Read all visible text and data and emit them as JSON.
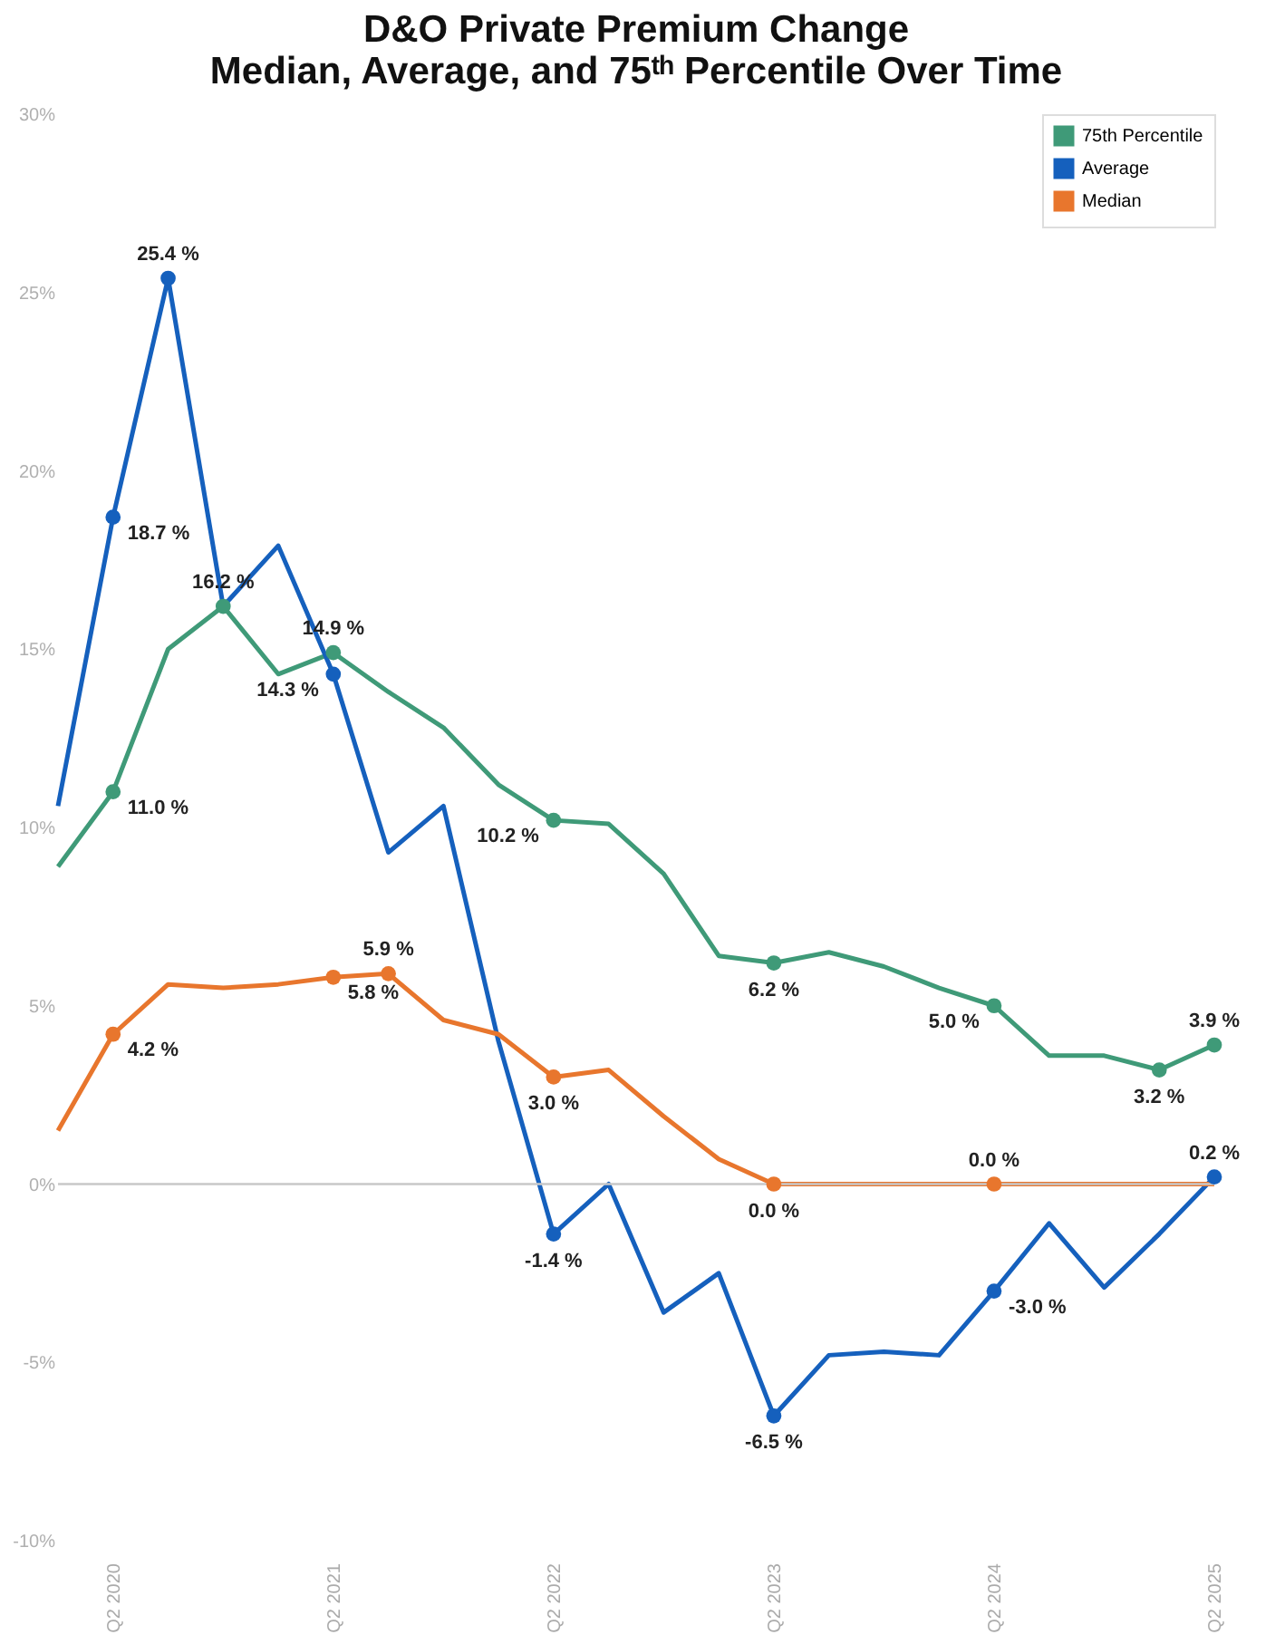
{
  "chart_data": {
    "type": "line",
    "title": "D&O Private Premium Change",
    "subtitle": "Median, Average, and 75ᵗʰ Percentile Over Time",
    "categories": [
      null,
      "Q2 2020",
      null,
      null,
      null,
      "Q2 2021",
      null,
      null,
      null,
      "Q2 2022",
      null,
      null,
      null,
      "Q2 2023",
      null,
      null,
      null,
      "Q2 2024",
      null,
      null,
      null,
      "Q2 2025"
    ],
    "series": [
      {
        "name": "75th Percentile",
        "color": "#3f9a78",
        "values": [
          8.9,
          11.0,
          15.0,
          16.2,
          14.3,
          14.9,
          13.8,
          12.8,
          11.2,
          10.2,
          10.1,
          8.7,
          6.4,
          6.2,
          6.5,
          6.1,
          5.5,
          5.0,
          3.6,
          3.6,
          3.2,
          3.9
        ],
        "value_labels": [
          null,
          "11.0 %",
          null,
          "16.2 %",
          null,
          "14.9 %",
          null,
          null,
          null,
          "10.2 %",
          null,
          null,
          null,
          "6.2 %",
          null,
          null,
          null,
          "5.0 %",
          null,
          null,
          "3.2 %",
          "3.9 %"
        ]
      },
      {
        "name": "Average",
        "color": "#1560bd",
        "values": [
          10.6,
          18.7,
          25.4,
          16.2,
          17.9,
          14.3,
          9.3,
          10.6,
          4.0,
          -1.4,
          0.0,
          -3.6,
          -2.5,
          -6.5,
          -4.8,
          -4.7,
          -4.8,
          -3.0,
          -1.1,
          -2.9,
          -1.4,
          0.2
        ],
        "value_labels": [
          null,
          "18.7 %",
          "25.4 %",
          null,
          null,
          "14.3 %",
          null,
          null,
          null,
          "-1.4 %",
          null,
          null,
          null,
          "-6.5 %",
          null,
          null,
          null,
          "-3.0 %",
          null,
          null,
          null,
          "0.2 %"
        ]
      },
      {
        "name": "Median",
        "color": "#e8762d",
        "values": [
          1.5,
          4.2,
          5.6,
          5.5,
          5.6,
          5.8,
          5.9,
          4.6,
          4.2,
          3.0,
          3.2,
          1.9,
          0.7,
          0.0,
          0.0,
          0.0,
          0.0,
          0.0,
          0.0,
          0.0,
          0.0,
          0.0
        ],
        "value_labels": [
          null,
          "4.2 %",
          null,
          null,
          null,
          "5.8 %",
          "5.9 %",
          null,
          null,
          "3.0 %",
          null,
          null,
          null,
          "0.0 %",
          null,
          null,
          null,
          "0.0 %",
          null,
          null,
          null,
          null
        ]
      }
    ],
    "ylim": [
      -10,
      30
    ],
    "yticks": [
      {
        "value": -10,
        "label": "-10%"
      },
      {
        "value": -5,
        "label": "-5%"
      },
      {
        "value": 0,
        "label": "0%"
      },
      {
        "value": 5,
        "label": "5%"
      },
      {
        "value": 10,
        "label": "10%"
      },
      {
        "value": 15,
        "label": "15%"
      },
      {
        "value": 20,
        "label": "20%"
      },
      {
        "value": 25,
        "label": "25%"
      },
      {
        "value": 30,
        "label": "30%"
      }
    ],
    "ref_lines": [
      {
        "axis": "y",
        "value": 0,
        "color": "#c8c8c8"
      }
    ],
    "grid": false,
    "legend": "top right"
  }
}
